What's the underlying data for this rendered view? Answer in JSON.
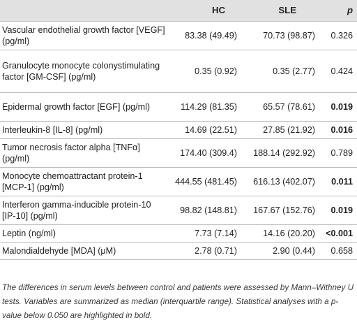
{
  "header": {
    "col1": "",
    "col2": "HC",
    "col3": "SLE",
    "col4": "p"
  },
  "rows": [
    {
      "variable": "Vascular endothelial growth factor [VEGF] (pg/ml)",
      "hc": "83.38 (49.49)",
      "sle": "70.73 (98.87)",
      "p": "0.326",
      "significant": false
    },
    {
      "variable": "Granulocyte monocyte colonystimulating factor [GM-CSF] (pg/ml)",
      "hc": "0.35 (0.92)",
      "sle": "0.35 (2.77)",
      "p": "0.424",
      "significant": false
    },
    {
      "variable": "Epidermal growth factor [EGF] (pg/ml)",
      "hc": "114.29 (81.35)",
      "sle": "65.57 (78.61)",
      "p": "0.019",
      "significant": true
    },
    {
      "variable": "Interleukin-8 [IL-8] (pg/ml)",
      "hc": "14.69 (22.51)",
      "sle": "27.85 (21.92)",
      "p": "0.016",
      "significant": true
    },
    {
      "variable": "Tumor necrosis factor alpha [TNFα] (pg/ml)",
      "hc": "174.40 (309.4)",
      "sle": "188.14 (292.92)",
      "p": "0.789",
      "significant": false
    },
    {
      "variable": "Monocyte chemoattractant protein-1 [MCP-1] (pg/ml)",
      "hc": "444.55 (481.45)",
      "sle": "616.13 (402.07)",
      "p": "0.011",
      "significant": true
    },
    {
      "variable": "Interferon gamma-inducible protein-10 [IP-10] (pg/ml)",
      "hc": "98.82 (148.81)",
      "sle": "167.67 (152.76)",
      "p": "0.019",
      "significant": true
    },
    {
      "variable": "Leptin (ng/ml)",
      "hc": "7.73 (7.14)",
      "sle": "14.16 (20.20)",
      "p": "<0.001",
      "significant": true
    },
    {
      "variable": "Malondialdehyde [MDA] (μM)",
      "hc": "2.78 (0.71)",
      "sle": "2.90 (0.44)",
      "p": "0.658",
      "significant": false
    }
  ],
  "footnote": "The differences in serum levels between control and patients were assessed by Mann–Withney U tests. Variables are summarized as median (interquartile range). Statistical analyses with a p-value below 0.050 are highlighted in bold."
}
